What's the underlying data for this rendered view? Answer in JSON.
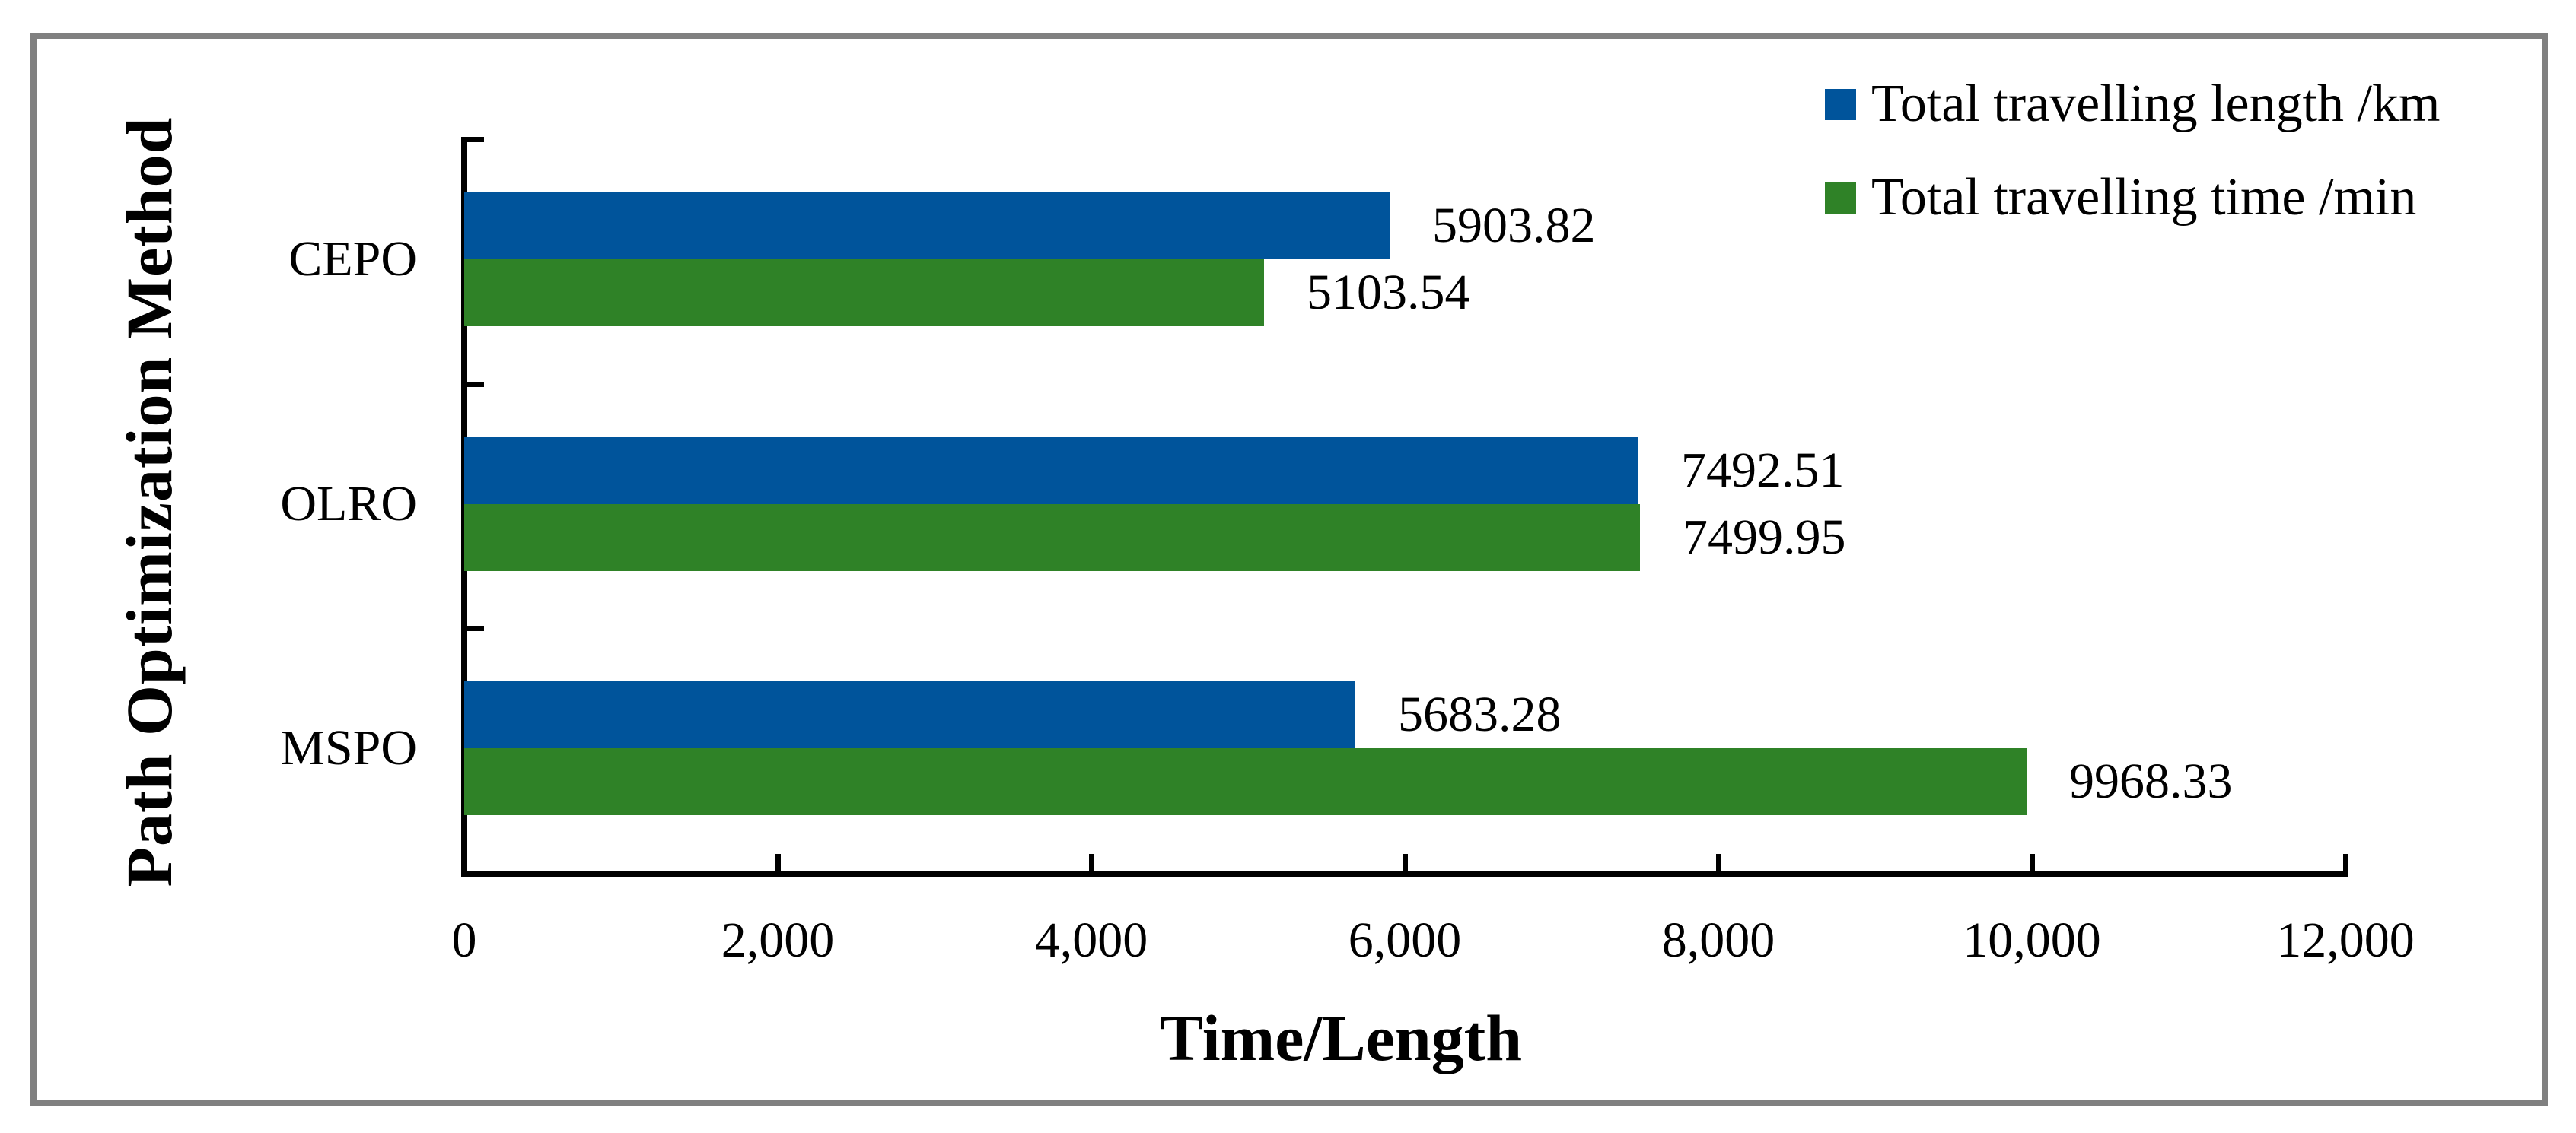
{
  "chart_data": {
    "type": "bar",
    "orientation": "horizontal",
    "title": "",
    "categories": [
      "CEPO",
      "OLRO",
      "MSPO"
    ],
    "series": [
      {
        "name": "Total travelling length /km",
        "color": "#00549B",
        "values": [
          5903.82,
          7492.51,
          5683.28
        ]
      },
      {
        "name": "Total travelling time /min",
        "color": "#2F8227",
        "values": [
          5103.54,
          7499.95,
          9968.33
        ]
      }
    ],
    "xlabel": "Time/Length",
    "ylabel": "Path Optimization Method",
    "xlim": [
      0,
      12000
    ],
    "xtick_labels": [
      "0",
      "2,000",
      "4,000",
      "6,000",
      "8,000",
      "10,000",
      "12,000"
    ],
    "value_labels_shown": true,
    "value_label_decimals": 2,
    "legend_position": "top-right",
    "grid": false,
    "frame_color": "#808080",
    "axis_color": "#000000",
    "text_color": "#000000"
  }
}
